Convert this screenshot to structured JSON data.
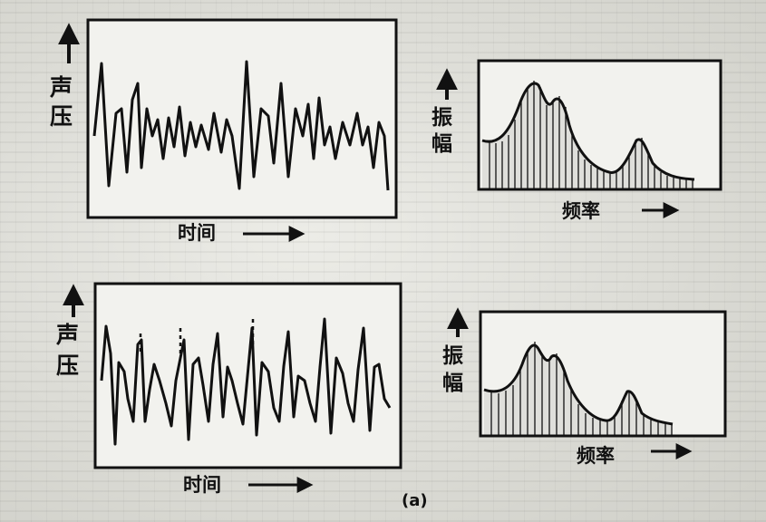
{
  "labels": {
    "sound_pressure": [
      "声",
      "压"
    ],
    "amplitude": [
      "振",
      "幅"
    ],
    "time": "时间",
    "frequency": "频率",
    "caption": "(a)"
  },
  "colors": {
    "ink": "#111111",
    "panel": "#f2f2ee",
    "paper": "#d9d9d3"
  }
}
